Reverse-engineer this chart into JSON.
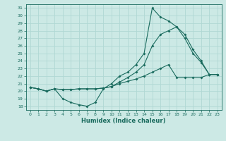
{
  "xlabel": "Humidex (Indice chaleur)",
  "bg_color": "#cce9e5",
  "grid_color": "#b0d8d4",
  "line_color": "#1a6b5e",
  "xlim": [
    -0.5,
    23.5
  ],
  "ylim": [
    17.5,
    31.5
  ],
  "xticks": [
    0,
    1,
    2,
    3,
    4,
    5,
    6,
    7,
    8,
    9,
    10,
    11,
    12,
    13,
    14,
    15,
    16,
    17,
    18,
    19,
    20,
    21,
    22,
    23
  ],
  "yticks": [
    18,
    19,
    20,
    21,
    22,
    23,
    24,
    25,
    26,
    27,
    28,
    29,
    30,
    31
  ],
  "line1_x": [
    0,
    1,
    2,
    3,
    4,
    5,
    6,
    7,
    8,
    9,
    10,
    11,
    12,
    13,
    14,
    15,
    16,
    17,
    18,
    19,
    20,
    21,
    22,
    23
  ],
  "line1_y": [
    20.5,
    20.3,
    20.0,
    20.3,
    19.0,
    18.5,
    18.2,
    18.0,
    18.5,
    20.3,
    21.0,
    22.0,
    22.5,
    23.5,
    25.0,
    31.0,
    29.8,
    29.3,
    28.5,
    27.0,
    25.0,
    23.8,
    22.2,
    22.2
  ],
  "line2_x": [
    0,
    1,
    2,
    3,
    4,
    5,
    6,
    7,
    8,
    9,
    10,
    11,
    12,
    13,
    14,
    15,
    16,
    17,
    18,
    19,
    20,
    21,
    22,
    23
  ],
  "line2_y": [
    20.5,
    20.3,
    20.0,
    20.3,
    20.2,
    20.2,
    20.3,
    20.3,
    20.3,
    20.4,
    20.6,
    21.2,
    21.8,
    22.5,
    23.5,
    26.0,
    27.5,
    28.0,
    28.5,
    27.5,
    25.5,
    24.0,
    22.2,
    22.2
  ],
  "line3_x": [
    0,
    1,
    2,
    3,
    4,
    5,
    6,
    7,
    8,
    9,
    10,
    11,
    12,
    13,
    14,
    15,
    16,
    17,
    18,
    19,
    20,
    21,
    22,
    23
  ],
  "line3_y": [
    20.5,
    20.3,
    20.0,
    20.3,
    20.2,
    20.2,
    20.3,
    20.3,
    20.3,
    20.4,
    20.6,
    21.0,
    21.3,
    21.6,
    22.0,
    22.5,
    23.0,
    23.5,
    21.8,
    21.8,
    21.8,
    21.8,
    22.2,
    22.2
  ]
}
